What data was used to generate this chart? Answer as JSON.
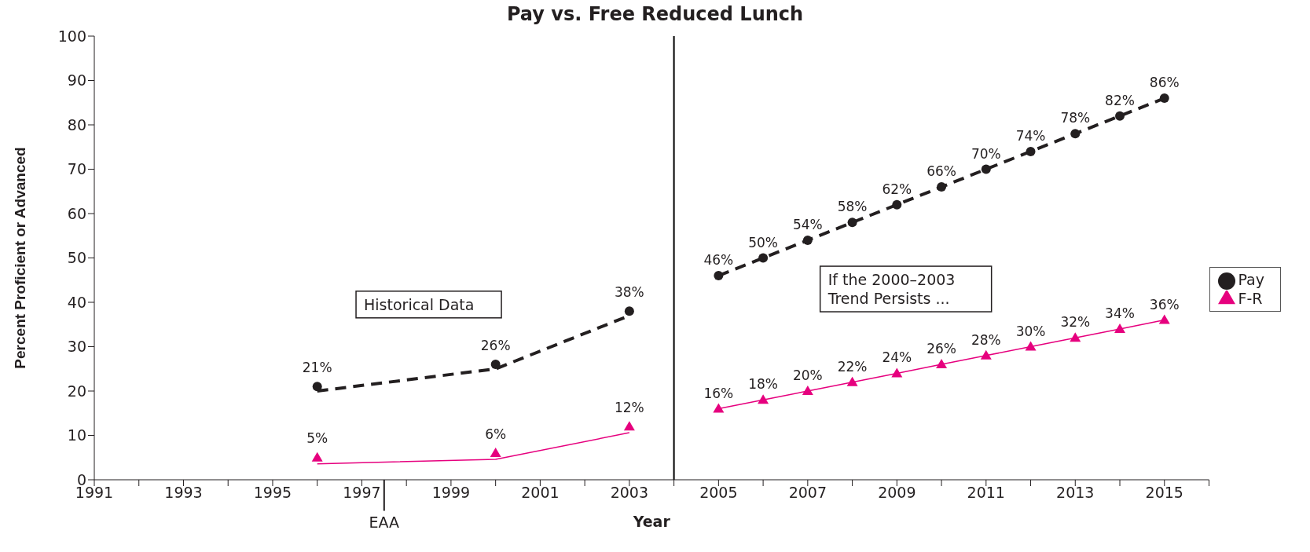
{
  "chart_data": {
    "type": "line",
    "title": "Pay vs. Free Reduced Lunch",
    "xlabel": "Year",
    "ylabel": "Percent Proficient or Advanced",
    "xlim": [
      1991,
      2016
    ],
    "xticks": [
      1991,
      {
        "value": 1992,
        "label": null
      },
      1993,
      {
        "value": 1994,
        "label": null
      },
      1995,
      {
        "value": 1996,
        "label": null
      },
      1997,
      {
        "value": 1998,
        "label": null
      },
      1999,
      {
        "value": 2000,
        "label": null
      },
      2001,
      {
        "value": 2002,
        "label": null
      },
      2003,
      {
        "value": 2004,
        "label": null
      },
      2005,
      {
        "value": 2006,
        "label": null
      },
      2007,
      {
        "value": 2008,
        "label": null
      },
      2009,
      {
        "value": 2010,
        "label": null
      },
      2011,
      {
        "value": 2012,
        "label": null
      },
      2013,
      {
        "value": 2014,
        "label": null
      },
      2015,
      {
        "value": 2016,
        "label": null
      }
    ],
    "ylim": [
      0,
      100
    ],
    "yticks": [
      0,
      10,
      20,
      30,
      40,
      50,
      60,
      70,
      80,
      90,
      100
    ],
    "grid": false,
    "legend": "right",
    "series": [
      {
        "name": "Pay",
        "color": "#231f20",
        "marker": "circle",
        "line_style": "dashed",
        "x": [
          2005,
          2006,
          2007,
          2008,
          2009,
          2010,
          2011,
          2012,
          2013,
          2014,
          2015
        ],
        "values": [
          46,
          50,
          54,
          58,
          62,
          66,
          70,
          74,
          78,
          82,
          86
        ],
        "value_labels": [
          "46%",
          "50%",
          "54%",
          "58%",
          "62%",
          "66%",
          "70%",
          "74%",
          "78%",
          "82%",
          "86%"
        ]
      },
      {
        "name": "F-R",
        "color": "#e6007e",
        "marker": "triangle",
        "line_style": "solid",
        "x": [
          2005,
          2006,
          2007,
          2008,
          2009,
          2010,
          2011,
          2012,
          2013,
          2014,
          2015
        ],
        "values": [
          16,
          18,
          20,
          22,
          24,
          26,
          28,
          30,
          32,
          34,
          36
        ],
        "value_labels": [
          "16%",
          "18%",
          "20%",
          "22%",
          "24%",
          "26%",
          "28%",
          "30%",
          "32%",
          "34%",
          "36%"
        ]
      },
      {
        "type": "scatter",
        "color": "#231f20",
        "marker": "circle",
        "x": [
          1996,
          2000,
          2003
        ],
        "values": [
          21,
          26,
          38
        ],
        "value_labels": [
          "21%",
          "26%",
          "38%"
        ]
      },
      {
        "type": "scatter",
        "color": "#e6007e",
        "marker": "triangle",
        "x": [
          1996,
          2000,
          2003
        ],
        "values": [
          5,
          6,
          12
        ],
        "value_labels": [
          "5%",
          "6%",
          "12%"
        ]
      },
      {
        "type": "line",
        "color": "#231f20",
        "marker": "none",
        "line_style": "dashed",
        "x": [
          1996,
          2000,
          2003
        ],
        "values": [
          20,
          25,
          37
        ]
      },
      {
        "type": "line",
        "color": "#e6007e",
        "marker": "none",
        "line_style": "solid",
        "x": [
          1996,
          2000,
          2003
        ],
        "values": [
          3.6,
          4.6,
          10.6
        ]
      }
    ],
    "ref_lines": [
      {
        "axis": "x",
        "value": 2004,
        "color": "#000000"
      }
    ],
    "annotations": [
      "Historical Data",
      "If the 2000–2003\nTrend Persists ...",
      "EAA"
    ]
  }
}
